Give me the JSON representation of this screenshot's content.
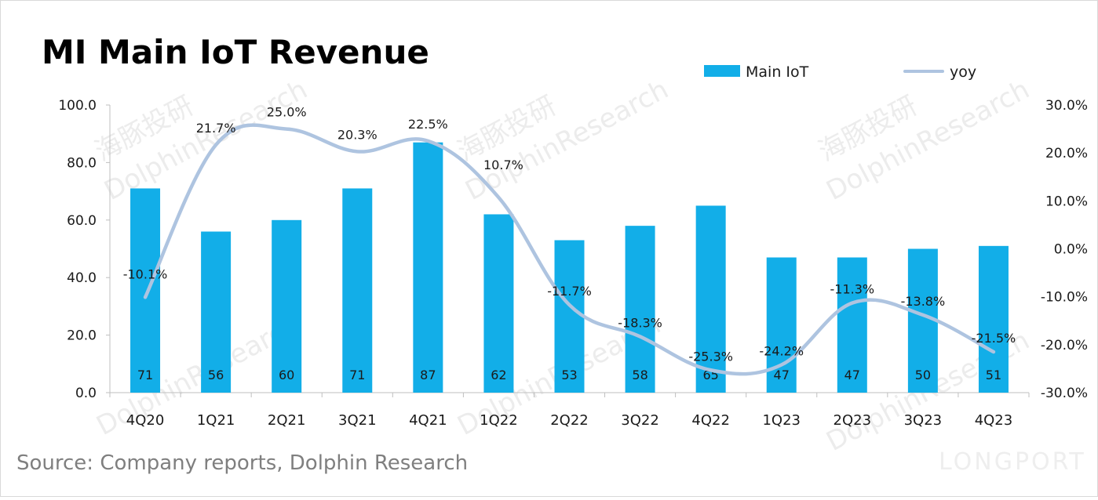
{
  "chart_data": {
    "type": "bar",
    "title": "MI Main IoT Revenue",
    "categories": [
      "4Q20",
      "1Q21",
      "2Q21",
      "3Q21",
      "4Q21",
      "1Q22",
      "2Q22",
      "3Q22",
      "4Q22",
      "1Q23",
      "2Q23",
      "3Q23",
      "4Q23"
    ],
    "series": [
      {
        "name": "Main IoT",
        "type": "bar",
        "axis": "left",
        "values": [
          71,
          56,
          60,
          71,
          87,
          62,
          53,
          58,
          65,
          47,
          47,
          50,
          51
        ],
        "labels": [
          "71",
          "56",
          "60",
          "71",
          "87",
          "62",
          "53",
          "58",
          "65",
          "47",
          "47",
          "50",
          "51"
        ]
      },
      {
        "name": "yoy",
        "type": "line",
        "axis": "right",
        "smooth": true,
        "values": [
          -10.1,
          21.7,
          25.0,
          20.3,
          22.5,
          10.7,
          -11.7,
          -18.3,
          -25.3,
          -24.2,
          -11.3,
          -13.8,
          -21.5
        ],
        "labels": [
          "-10.1%",
          "21.7%",
          "25.0%",
          "20.3%",
          "22.5%",
          "10.7%",
          "-11.7%",
          "-18.3%",
          "-25.3%",
          "-24.2%",
          "-11.3%",
          "-13.8%",
          "-21.5%"
        ]
      }
    ],
    "y_left": {
      "range": [
        0,
        100
      ],
      "ticks": [
        "0.0",
        "20.0",
        "40.0",
        "60.0",
        "80.0",
        "100.0"
      ]
    },
    "y_right": {
      "range": [
        -30,
        30
      ],
      "ticks": [
        "-30.0%",
        "-20.0%",
        "-10.0%",
        "0.0%",
        "10.0%",
        "20.0%",
        "30.0%"
      ]
    },
    "legend_position": "top-right",
    "grid": false,
    "colors": {
      "bar": "#12aee8",
      "line": "#aec4e0"
    }
  },
  "source_text": "Source: Company reports, Dolphin Research",
  "watermark": {
    "text": "DolphinResearch",
    "cn_text": "海豚投研",
    "brand": "LONGPORT"
  }
}
